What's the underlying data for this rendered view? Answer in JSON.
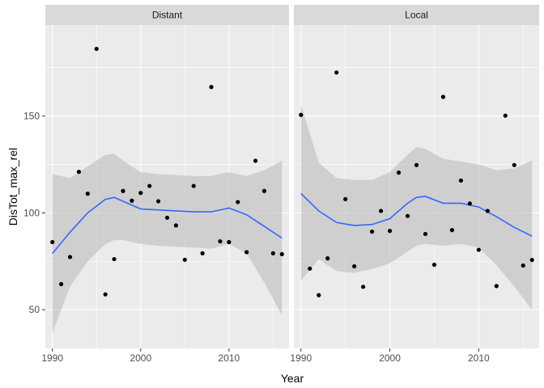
{
  "chart_data": {
    "type": "scatter",
    "facets": [
      "Distant",
      "Local"
    ],
    "xlabel": "Year",
    "ylabel": "DisTot_max_rel",
    "xlim": [
      1989.2,
      2016.8
    ],
    "ylim": [
      30,
      197
    ],
    "x_ticks": [
      1990,
      2000,
      2010
    ],
    "y_ticks": [
      50,
      100,
      150
    ],
    "grid": true,
    "legend": "none",
    "colors": {
      "panel_background": "#ebebeb",
      "grid_major": "#ffffff",
      "strip_background": "#d9d9d9",
      "points": "#000000",
      "smooth_line": "#3366ff",
      "confidence_band": "#bdbdbd"
    },
    "panels": [
      {
        "facet": "Distant",
        "points": [
          {
            "x": 1990,
            "y": 84.9
          },
          {
            "x": 1991,
            "y": 63.2
          },
          {
            "x": 1992,
            "y": 77.2
          },
          {
            "x": 1993,
            "y": 121.2
          },
          {
            "x": 1994,
            "y": 109.9
          },
          {
            "x": 1995,
            "y": 184.7
          },
          {
            "x": 1996,
            "y": 57.9
          },
          {
            "x": 1997,
            "y": 76.1
          },
          {
            "x": 1998,
            "y": 111.3
          },
          {
            "x": 1999,
            "y": 106.3
          },
          {
            "x": 2000,
            "y": 110.3
          },
          {
            "x": 2001,
            "y": 113.9
          },
          {
            "x": 2002,
            "y": 106.0
          },
          {
            "x": 2003,
            "y": 97.5
          },
          {
            "x": 2004,
            "y": 93.5
          },
          {
            "x": 2005,
            "y": 75.8
          },
          {
            "x": 2006,
            "y": 113.9
          },
          {
            "x": 2007,
            "y": 79.1
          },
          {
            "x": 2008,
            "y": 165.0
          },
          {
            "x": 2009,
            "y": 85.3
          },
          {
            "x": 2010,
            "y": 84.9
          },
          {
            "x": 2011,
            "y": 105.6
          },
          {
            "x": 2012,
            "y": 79.7
          },
          {
            "x": 2013,
            "y": 126.9
          },
          {
            "x": 2014,
            "y": 111.3
          },
          {
            "x": 2015,
            "y": 79.1
          },
          {
            "x": 2016,
            "y": 78.7
          }
        ],
        "smooth": [
          {
            "x": 1990,
            "y": 79.0,
            "lo": 38.0,
            "hi": 120.0
          },
          {
            "x": 1992,
            "y": 90.0,
            "lo": 62.0,
            "hi": 118.0
          },
          {
            "x": 1994,
            "y": 100.0,
            "lo": 75.0,
            "hi": 124.0
          },
          {
            "x": 1996,
            "y": 107.0,
            "lo": 84.0,
            "hi": 130.0
          },
          {
            "x": 1997,
            "y": 108.0,
            "lo": 86.0,
            "hi": 130.5
          },
          {
            "x": 1998,
            "y": 106.0,
            "lo": 86.0,
            "hi": 127.0
          },
          {
            "x": 2000,
            "y": 102.0,
            "lo": 84.0,
            "hi": 121.0
          },
          {
            "x": 2002,
            "y": 101.5,
            "lo": 83.0,
            "hi": 120.0
          },
          {
            "x": 2004,
            "y": 101.0,
            "lo": 82.5,
            "hi": 119.5
          },
          {
            "x": 2006,
            "y": 100.5,
            "lo": 82.0,
            "hi": 119.0
          },
          {
            "x": 2008,
            "y": 100.5,
            "lo": 81.5,
            "hi": 119.0
          },
          {
            "x": 2010,
            "y": 102.5,
            "lo": 84.0,
            "hi": 121.0
          },
          {
            "x": 2012,
            "y": 99.0,
            "lo": 79.0,
            "hi": 119.0
          },
          {
            "x": 2014,
            "y": 93.0,
            "lo": 64.0,
            "hi": 122.0
          },
          {
            "x": 2016,
            "y": 87.0,
            "lo": 47.0,
            "hi": 127.0
          }
        ]
      },
      {
        "facet": "Local",
        "points": [
          {
            "x": 1990,
            "y": 150.6
          },
          {
            "x": 1991,
            "y": 71.2
          },
          {
            "x": 1992,
            "y": 57.5
          },
          {
            "x": 1993,
            "y": 76.5
          },
          {
            "x": 1994,
            "y": 172.5
          },
          {
            "x": 1995,
            "y": 107.1
          },
          {
            "x": 1996,
            "y": 72.4
          },
          {
            "x": 1997,
            "y": 61.8
          },
          {
            "x": 1998,
            "y": 90.3
          },
          {
            "x": 1999,
            "y": 101.0
          },
          {
            "x": 2000,
            "y": 90.7
          },
          {
            "x": 2001,
            "y": 120.8
          },
          {
            "x": 2002,
            "y": 98.4
          },
          {
            "x": 2003,
            "y": 124.7
          },
          {
            "x": 2004,
            "y": 89.1
          },
          {
            "x": 2005,
            "y": 73.2
          },
          {
            "x": 2006,
            "y": 159.9
          },
          {
            "x": 2007,
            "y": 91.1
          },
          {
            "x": 2008,
            "y": 116.7
          },
          {
            "x": 2009,
            "y": 104.8
          },
          {
            "x": 2010,
            "y": 80.9
          },
          {
            "x": 2011,
            "y": 101.0
          },
          {
            "x": 2012,
            "y": 62.2
          },
          {
            "x": 2013,
            "y": 150.2
          },
          {
            "x": 2014,
            "y": 124.7
          },
          {
            "x": 2015,
            "y": 72.8
          },
          {
            "x": 2016,
            "y": 75.7
          }
        ],
        "smooth": [
          {
            "x": 1990,
            "y": 110.0,
            "lo": 65.0,
            "hi": 156.0
          },
          {
            "x": 1992,
            "y": 101.0,
            "lo": 76.0,
            "hi": 126.0
          },
          {
            "x": 1994,
            "y": 95.0,
            "lo": 70.0,
            "hi": 118.0
          },
          {
            "x": 1996,
            "y": 93.5,
            "lo": 69.0,
            "hi": 117.0
          },
          {
            "x": 1998,
            "y": 94.0,
            "lo": 71.0,
            "hi": 117.0
          },
          {
            "x": 2000,
            "y": 97.0,
            "lo": 74.0,
            "hi": 121.0
          },
          {
            "x": 2002,
            "y": 105.0,
            "lo": 80.0,
            "hi": 130.0
          },
          {
            "x": 2003,
            "y": 108.0,
            "lo": 83.0,
            "hi": 134.0
          },
          {
            "x": 2004,
            "y": 108.5,
            "lo": 84.0,
            "hi": 133.0
          },
          {
            "x": 2006,
            "y": 105.0,
            "lo": 83.0,
            "hi": 128.0
          },
          {
            "x": 2008,
            "y": 105.0,
            "lo": 84.0,
            "hi": 126.5
          },
          {
            "x": 2010,
            "y": 103.0,
            "lo": 82.0,
            "hi": 125.0
          },
          {
            "x": 2012,
            "y": 98.0,
            "lo": 73.0,
            "hi": 122.0
          },
          {
            "x": 2014,
            "y": 92.5,
            "lo": 62.0,
            "hi": 123.0
          },
          {
            "x": 2016,
            "y": 88.0,
            "lo": 50.0,
            "hi": 127.0
          }
        ]
      }
    ]
  }
}
